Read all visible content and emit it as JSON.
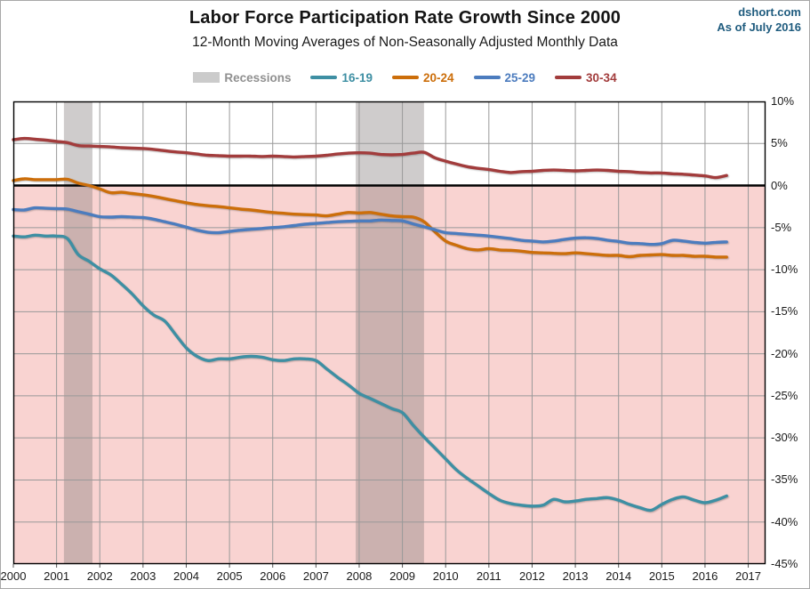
{
  "header": {
    "title": "Labor Force Participation Rate Growth Since 2000",
    "subtitle": "12-Month Moving Averages of Non-Seasonally Adjusted Monthly Data",
    "site": "dshort.com",
    "as_of": "As of July 2016"
  },
  "legend": {
    "items": [
      {
        "label": "Recessions",
        "type": "patch",
        "color": "#cbcbcb",
        "label_color": "#909090"
      },
      {
        "label": "16-19",
        "type": "line",
        "color": "#3e8fa3",
        "label_color": "#3e8fa3"
      },
      {
        "label": "20-24",
        "type": "line",
        "color": "#cc6e0a",
        "label_color": "#cc6e0a"
      },
      {
        "label": "25-29",
        "type": "line",
        "color": "#4c7cbe",
        "label_color": "#4c7cbe"
      },
      {
        "label": "30-34",
        "type": "line",
        "color": "#a23c3c",
        "label_color": "#a23c3c"
      }
    ]
  },
  "colors": {
    "below_zero_fill": "#f9d3d1",
    "recession_band": "rgba(128,122,122,0.38)",
    "gridline": "#999999",
    "zero_line": "#000000",
    "plot_border": "#000000",
    "watermark": "#1e5b7e"
  },
  "chart_data": {
    "type": "line",
    "title": "Labor Force Participation Rate Growth Since 2000",
    "subtitle": "12-Month Moving Averages of Non-Seasonally Adjusted Monthly Data",
    "xlabel": "",
    "ylabel": "",
    "xlim": [
      2000,
      2017.4
    ],
    "ylim": [
      -45,
      10
    ],
    "x_ticks": [
      2000,
      2001,
      2002,
      2003,
      2004,
      2005,
      2006,
      2007,
      2008,
      2009,
      2010,
      2011,
      2012,
      2013,
      2014,
      2015,
      2016,
      2017
    ],
    "y_ticks": [
      {
        "value": 10,
        "label": "10%"
      },
      {
        "value": 5,
        "label": "5%"
      },
      {
        "value": 0,
        "label": "0%"
      },
      {
        "value": -5,
        "label": "-5%"
      },
      {
        "value": -10,
        "label": "-10%"
      },
      {
        "value": -15,
        "label": "-15%"
      },
      {
        "value": -20,
        "label": "-20%"
      },
      {
        "value": -25,
        "label": "-25%"
      },
      {
        "value": -30,
        "label": "-30%"
      },
      {
        "value": -35,
        "label": "-35%"
      },
      {
        "value": -40,
        "label": "-40%"
      },
      {
        "value": -45,
        "label": "-45%"
      }
    ],
    "recessions": [
      {
        "start": 2001.17,
        "end": 2001.83
      },
      {
        "start": 2007.92,
        "end": 2009.5
      }
    ],
    "x": [
      2000.0,
      2000.25,
      2000.5,
      2000.75,
      2001.0,
      2001.25,
      2001.5,
      2001.75,
      2002.0,
      2002.25,
      2002.5,
      2002.75,
      2003.0,
      2003.25,
      2003.5,
      2003.75,
      2004.0,
      2004.25,
      2004.5,
      2004.75,
      2005.0,
      2005.25,
      2005.5,
      2005.75,
      2006.0,
      2006.25,
      2006.5,
      2006.75,
      2007.0,
      2007.25,
      2007.5,
      2007.75,
      2008.0,
      2008.25,
      2008.5,
      2008.75,
      2009.0,
      2009.25,
      2009.5,
      2009.75,
      2010.0,
      2010.25,
      2010.5,
      2010.75,
      2011.0,
      2011.25,
      2011.5,
      2011.75,
      2012.0,
      2012.25,
      2012.5,
      2012.75,
      2013.0,
      2013.25,
      2013.5,
      2013.75,
      2014.0,
      2014.25,
      2014.5,
      2014.75,
      2015.0,
      2015.25,
      2015.5,
      2015.75,
      2016.0,
      2016.25,
      2016.5
    ],
    "series": [
      {
        "name": "16-19",
        "color": "#3e8fa3",
        "values": [
          -6.0,
          -6.1,
          -5.9,
          -6.0,
          -6.0,
          -6.3,
          -8.2,
          -9.0,
          -9.9,
          -10.6,
          -11.7,
          -12.9,
          -14.3,
          -15.4,
          -16.1,
          -17.7,
          -19.3,
          -20.3,
          -20.8,
          -20.6,
          -20.6,
          -20.4,
          -20.3,
          -20.4,
          -20.7,
          -20.8,
          -20.6,
          -20.6,
          -20.8,
          -21.8,
          -22.8,
          -23.7,
          -24.7,
          -25.3,
          -25.9,
          -26.5,
          -27.0,
          -28.5,
          -29.9,
          -31.2,
          -32.5,
          -33.8,
          -34.8,
          -35.7,
          -36.6,
          -37.4,
          -37.8,
          -38.0,
          -38.1,
          -38.0,
          -37.3,
          -37.6,
          -37.5,
          -37.3,
          -37.2,
          -37.1,
          -37.4,
          -37.9,
          -38.3,
          -38.6,
          -37.9,
          -37.3,
          -37.0,
          -37.4,
          -37.7,
          -37.4,
          -36.9
        ]
      },
      {
        "name": "20-24",
        "color": "#cc6e0a",
        "values": [
          0.6,
          0.8,
          0.7,
          0.7,
          0.7,
          0.75,
          0.3,
          0.0,
          -0.4,
          -0.85,
          -0.8,
          -0.95,
          -1.1,
          -1.3,
          -1.55,
          -1.8,
          -2.05,
          -2.25,
          -2.4,
          -2.5,
          -2.65,
          -2.8,
          -2.9,
          -3.05,
          -3.2,
          -3.3,
          -3.4,
          -3.45,
          -3.5,
          -3.6,
          -3.4,
          -3.2,
          -3.25,
          -3.2,
          -3.4,
          -3.6,
          -3.7,
          -3.75,
          -4.3,
          -5.5,
          -6.6,
          -7.1,
          -7.5,
          -7.65,
          -7.5,
          -7.65,
          -7.7,
          -7.8,
          -7.95,
          -8.0,
          -8.05,
          -8.1,
          -8.0,
          -8.1,
          -8.2,
          -8.3,
          -8.3,
          -8.45,
          -8.3,
          -8.25,
          -8.2,
          -8.3,
          -8.3,
          -8.4,
          -8.4,
          -8.5,
          -8.5
        ]
      },
      {
        "name": "25-29",
        "color": "#4c7cbe",
        "values": [
          -2.85,
          -2.9,
          -2.65,
          -2.7,
          -2.75,
          -2.8,
          -3.1,
          -3.4,
          -3.7,
          -3.75,
          -3.7,
          -3.75,
          -3.8,
          -4.0,
          -4.3,
          -4.6,
          -4.95,
          -5.3,
          -5.55,
          -5.6,
          -5.45,
          -5.3,
          -5.2,
          -5.1,
          -5.0,
          -4.9,
          -4.75,
          -4.6,
          -4.5,
          -4.4,
          -4.3,
          -4.25,
          -4.2,
          -4.2,
          -4.1,
          -4.15,
          -4.2,
          -4.55,
          -4.9,
          -5.25,
          -5.6,
          -5.7,
          -5.8,
          -5.9,
          -6.0,
          -6.15,
          -6.3,
          -6.5,
          -6.6,
          -6.7,
          -6.6,
          -6.4,
          -6.25,
          -6.2,
          -6.3,
          -6.5,
          -6.65,
          -6.85,
          -6.9,
          -7.0,
          -6.9,
          -6.5,
          -6.6,
          -6.75,
          -6.85,
          -6.75,
          -6.7
        ]
      },
      {
        "name": "30-34",
        "color": "#a23c3c",
        "values": [
          5.45,
          5.6,
          5.5,
          5.4,
          5.25,
          5.1,
          4.75,
          4.7,
          4.65,
          4.6,
          4.5,
          4.45,
          4.4,
          4.3,
          4.15,
          4.0,
          3.9,
          3.75,
          3.6,
          3.55,
          3.5,
          3.5,
          3.5,
          3.45,
          3.5,
          3.45,
          3.4,
          3.45,
          3.5,
          3.6,
          3.75,
          3.85,
          3.9,
          3.85,
          3.7,
          3.65,
          3.7,
          3.85,
          3.95,
          3.3,
          2.9,
          2.55,
          2.25,
          2.05,
          1.9,
          1.7,
          1.55,
          1.65,
          1.7,
          1.8,
          1.85,
          1.8,
          1.75,
          1.8,
          1.85,
          1.8,
          1.7,
          1.65,
          1.55,
          1.5,
          1.5,
          1.4,
          1.35,
          1.25,
          1.15,
          0.95,
          1.2
        ]
      }
    ]
  }
}
